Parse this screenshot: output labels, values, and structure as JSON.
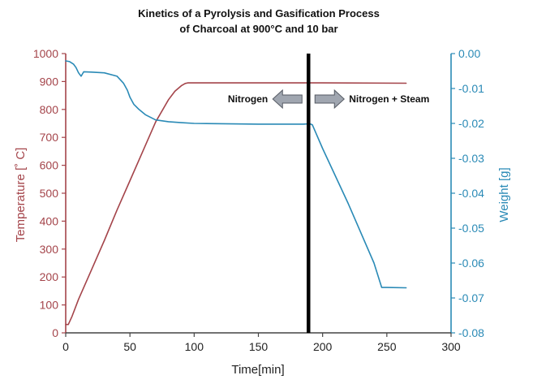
{
  "chart_data": {
    "type": "line",
    "title_lines": [
      "Kinetics of a Pyrolysis and Gasification Process",
      "of Charcoal at 900°C and 10 bar"
    ],
    "xlabel": "Time[min]",
    "ylabel_left": "Temperature [˚ C]",
    "ylabel_right": "Weight [g]",
    "xlim": [
      0,
      300
    ],
    "ylim_left": [
      0,
      1000
    ],
    "ylim_right": [
      -0.08,
      0.0
    ],
    "x_ticks": [
      "0",
      "50",
      "100",
      "150",
      "200",
      "250",
      "300"
    ],
    "y_left_ticks": [
      "0",
      "100",
      "200",
      "300",
      "400",
      "500",
      "600",
      "700",
      "800",
      "900",
      "1000"
    ],
    "y_right_ticks": [
      "0.00",
      "-0.01",
      "-0.02",
      "-0.03",
      "-0.04",
      "-0.05",
      "-0.06",
      "-0.07",
      "-0.08"
    ],
    "colors": {
      "temperature": "#a4444a",
      "weight": "#2a8ab6",
      "marker": "#000000",
      "arrow_fill": "#a0a6b0",
      "arrow_stroke": "#555a63",
      "axis": "#444444"
    },
    "series": [
      {
        "name": "Temperature",
        "axis": "left",
        "x": [
          0,
          2,
          5,
          10,
          20,
          30,
          40,
          50,
          60,
          70,
          80,
          85,
          90,
          93,
          95,
          100,
          150,
          190,
          200,
          265
        ],
        "y": [
          30,
          30,
          60,
          120,
          225,
          330,
          440,
          545,
          650,
          755,
          835,
          865,
          885,
          893,
          895,
          895,
          895,
          895,
          895,
          894
        ]
      },
      {
        "name": "Weight",
        "axis": "right",
        "x": [
          0,
          3,
          6,
          8,
          10,
          12,
          14,
          20,
          30,
          40,
          45,
          48,
          50,
          53,
          57,
          62,
          70,
          80,
          90,
          100,
          150,
          185,
          190,
          192,
          200,
          220,
          240,
          246,
          250,
          265
        ],
        "y": [
          -0.0021,
          -0.0023,
          -0.003,
          -0.004,
          -0.0055,
          -0.0065,
          -0.0052,
          -0.0053,
          -0.0055,
          -0.0065,
          -0.0085,
          -0.0105,
          -0.0125,
          -0.0145,
          -0.016,
          -0.0175,
          -0.019,
          -0.0195,
          -0.0198,
          -0.02,
          -0.0202,
          -0.0202,
          -0.0201,
          -0.0204,
          -0.0272,
          -0.043,
          -0.06,
          -0.067,
          -0.067,
          -0.0671
        ]
      }
    ],
    "vertical_line_x": 189,
    "annotations": [
      {
        "text": "Nitrogen",
        "direction": "left"
      },
      {
        "text": "Nitrogen + Steam",
        "direction": "right"
      }
    ]
  }
}
